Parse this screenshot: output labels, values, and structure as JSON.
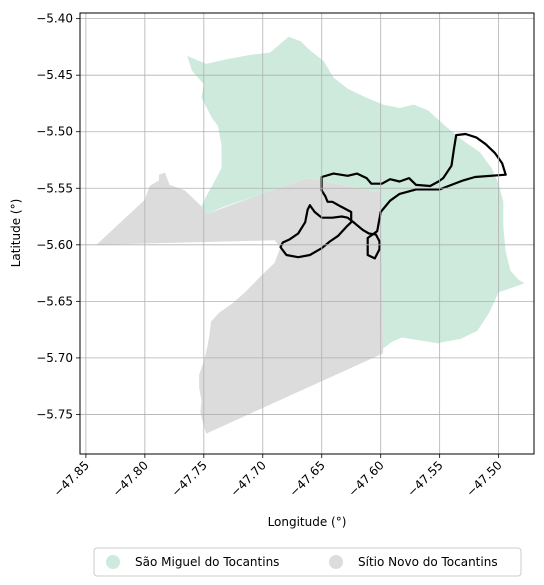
{
  "chart_data": {
    "type": "map",
    "xlabel": "Longitude (°)",
    "ylabel": "Latitude (°)",
    "xlim": [
      -47.855,
      -47.47
    ],
    "ylim": [
      -5.785,
      -5.395
    ],
    "grid": true,
    "legend_position": "bottom",
    "x_ticks": [
      {
        "value": -47.85,
        "label": "−47.85"
      },
      {
        "value": -47.8,
        "label": "−47.80"
      },
      {
        "value": -47.75,
        "label": "−47.75"
      },
      {
        "value": -47.7,
        "label": "−47.70"
      },
      {
        "value": -47.65,
        "label": "−47.65"
      },
      {
        "value": -47.6,
        "label": "−47.60"
      },
      {
        "value": -47.55,
        "label": "−47.55"
      },
      {
        "value": -47.5,
        "label": "−47.50"
      }
    ],
    "y_ticks": [
      {
        "value": -5.4,
        "label": "−5.40"
      },
      {
        "value": -5.45,
        "label": "−5.45"
      },
      {
        "value": -5.5,
        "label": "−5.50"
      },
      {
        "value": -5.55,
        "label": "−5.55"
      },
      {
        "value": -5.6,
        "label": "−5.60"
      },
      {
        "value": -5.65,
        "label": "−5.65"
      },
      {
        "value": -5.7,
        "label": "−5.70"
      },
      {
        "value": -5.75,
        "label": "−5.75"
      }
    ],
    "regions": [
      {
        "name": "São Miguel do Tocantins",
        "color": "#cdeadd",
        "coords": [
          [
            -47.678,
            -5.416
          ],
          [
            -47.668,
            -5.42
          ],
          [
            -47.66,
            -5.428
          ],
          [
            -47.648,
            -5.438
          ],
          [
            -47.64,
            -5.452
          ],
          [
            -47.628,
            -5.462
          ],
          [
            -47.612,
            -5.47
          ],
          [
            -47.598,
            -5.476
          ],
          [
            -47.584,
            -5.479
          ],
          [
            -47.572,
            -5.476
          ],
          [
            -47.56,
            -5.481
          ],
          [
            -47.544,
            -5.496
          ],
          [
            -47.53,
            -5.508
          ],
          [
            -47.516,
            -5.518
          ],
          [
            -47.506,
            -5.532
          ],
          [
            -47.5,
            -5.546
          ],
          [
            -47.496,
            -5.562
          ],
          [
            -47.496,
            -5.584
          ],
          [
            -47.494,
            -5.606
          ],
          [
            -47.49,
            -5.623
          ],
          [
            -47.483,
            -5.631
          ],
          [
            -47.478,
            -5.634
          ],
          [
            -47.486,
            -5.637
          ],
          [
            -47.5,
            -5.642
          ],
          [
            -47.508,
            -5.66
          ],
          [
            -47.518,
            -5.676
          ],
          [
            -47.532,
            -5.683
          ],
          [
            -47.552,
            -5.687
          ],
          [
            -47.57,
            -5.684
          ],
          [
            -47.582,
            -5.682
          ],
          [
            -47.591,
            -5.686
          ],
          [
            -47.598,
            -5.692
          ],
          [
            -47.599,
            -5.612
          ],
          [
            -47.6,
            -5.554
          ],
          [
            -47.638,
            -5.546
          ],
          [
            -47.662,
            -5.541
          ],
          [
            -47.704,
            -5.556
          ],
          [
            -47.732,
            -5.566
          ],
          [
            -47.748,
            -5.573
          ],
          [
            -47.752,
            -5.566
          ],
          [
            -47.748,
            -5.557
          ],
          [
            -47.743,
            -5.548
          ],
          [
            -47.735,
            -5.532
          ],
          [
            -47.735,
            -5.512
          ],
          [
            -47.738,
            -5.495
          ],
          [
            -47.743,
            -5.488
          ],
          [
            -47.752,
            -5.47
          ],
          [
            -47.75,
            -5.458
          ],
          [
            -47.76,
            -5.446
          ],
          [
            -47.764,
            -5.433
          ],
          [
            -47.748,
            -5.44
          ],
          [
            -47.731,
            -5.436
          ],
          [
            -47.71,
            -5.432
          ],
          [
            -47.694,
            -5.43
          ]
        ]
      },
      {
        "name": "Sítio Novo do Tocantins",
        "color": "#dcdcdc",
        "coords": [
          [
            -47.841,
            -5.6
          ],
          [
            -47.8,
            -5.56
          ],
          [
            -47.796,
            -5.548
          ],
          [
            -47.788,
            -5.543
          ],
          [
            -47.788,
            -5.538
          ],
          [
            -47.783,
            -5.536
          ],
          [
            -47.779,
            -5.547
          ],
          [
            -47.766,
            -5.552
          ],
          [
            -47.752,
            -5.566
          ],
          [
            -47.748,
            -5.573
          ],
          [
            -47.704,
            -5.556
          ],
          [
            -47.662,
            -5.541
          ],
          [
            -47.638,
            -5.546
          ],
          [
            -47.6,
            -5.554
          ],
          [
            -47.599,
            -5.612
          ],
          [
            -47.598,
            -5.692
          ],
          [
            -47.598,
            -5.696
          ],
          [
            -47.748,
            -5.767
          ],
          [
            -47.75,
            -5.76
          ],
          [
            -47.753,
            -5.748
          ],
          [
            -47.752,
            -5.738
          ],
          [
            -47.754,
            -5.726
          ],
          [
            -47.754,
            -5.715
          ],
          [
            -47.75,
            -5.703
          ],
          [
            -47.747,
            -5.69
          ],
          [
            -47.745,
            -5.678
          ],
          [
            -47.744,
            -5.668
          ],
          [
            -47.737,
            -5.66
          ],
          [
            -47.726,
            -5.652
          ],
          [
            -47.715,
            -5.642
          ],
          [
            -47.702,
            -5.628
          ],
          [
            -47.69,
            -5.616
          ],
          [
            -47.685,
            -5.602
          ],
          [
            -47.69,
            -5.596
          ]
        ]
      }
    ],
    "outline": {
      "color": "#000000",
      "coords": [
        [
          -47.65,
          -5.552
        ],
        [
          -47.65,
          -5.54
        ],
        [
          -47.64,
          -5.537
        ],
        [
          -47.628,
          -5.539
        ],
        [
          -47.62,
          -5.537
        ],
        [
          -47.612,
          -5.541
        ],
        [
          -47.608,
          -5.546
        ],
        [
          -47.599,
          -5.546
        ],
        [
          -47.592,
          -5.542
        ],
        [
          -47.584,
          -5.544
        ],
        [
          -47.576,
          -5.541
        ],
        [
          -47.57,
          -5.547
        ],
        [
          -47.558,
          -5.548
        ],
        [
          -47.551,
          -5.544
        ],
        [
          -47.547,
          -5.541
        ],
        [
          -47.54,
          -5.53
        ],
        [
          -47.538,
          -5.516
        ],
        [
          -47.536,
          -5.503
        ],
        [
          -47.528,
          -5.502
        ],
        [
          -47.519,
          -5.505
        ],
        [
          -47.511,
          -5.511
        ],
        [
          -47.503,
          -5.519
        ],
        [
          -47.497,
          -5.528
        ],
        [
          -47.494,
          -5.538
        ],
        [
          -47.52,
          -5.54
        ],
        [
          -47.53,
          -5.543
        ],
        [
          -47.55,
          -5.551
        ],
        [
          -47.57,
          -5.551
        ],
        [
          -47.584,
          -5.555
        ],
        [
          -47.592,
          -5.561
        ],
        [
          -47.6,
          -5.571
        ],
        [
          -47.603,
          -5.588
        ],
        [
          -47.611,
          -5.594
        ],
        [
          -47.611,
          -5.609
        ],
        [
          -47.605,
          -5.612
        ],
        [
          -47.601,
          -5.604
        ],
        [
          -47.601,
          -5.597
        ],
        [
          -47.604,
          -5.591
        ],
        [
          -47.61,
          -5.59
        ],
        [
          -47.615,
          -5.587
        ],
        [
          -47.622,
          -5.581
        ],
        [
          -47.628,
          -5.576
        ],
        [
          -47.633,
          -5.575
        ],
        [
          -47.641,
          -5.576
        ],
        [
          -47.65,
          -5.576
        ],
        [
          -47.656,
          -5.571
        ],
        [
          -47.66,
          -5.565
        ],
        [
          -47.662,
          -5.569
        ],
        [
          -47.664,
          -5.58
        ],
        [
          -47.67,
          -5.59
        ],
        [
          -47.677,
          -5.595
        ],
        [
          -47.683,
          -5.598
        ],
        [
          -47.685,
          -5.602
        ],
        [
          -47.68,
          -5.609
        ],
        [
          -47.67,
          -5.611
        ],
        [
          -47.66,
          -5.609
        ],
        [
          -47.65,
          -5.603
        ],
        [
          -47.643,
          -5.597
        ],
        [
          -47.636,
          -5.592
        ],
        [
          -47.629,
          -5.584
        ],
        [
          -47.625,
          -5.58
        ],
        [
          -47.625,
          -5.571
        ],
        [
          -47.634,
          -5.566
        ],
        [
          -47.641,
          -5.562
        ],
        [
          -47.645,
          -5.562
        ],
        [
          -47.647,
          -5.557
        ]
      ]
    },
    "legend": [
      {
        "label": "São Miguel do Tocantins",
        "color": "#cdeadd"
      },
      {
        "label": "Sítio Novo do Tocantins",
        "color": "#dcdcdc"
      }
    ]
  }
}
